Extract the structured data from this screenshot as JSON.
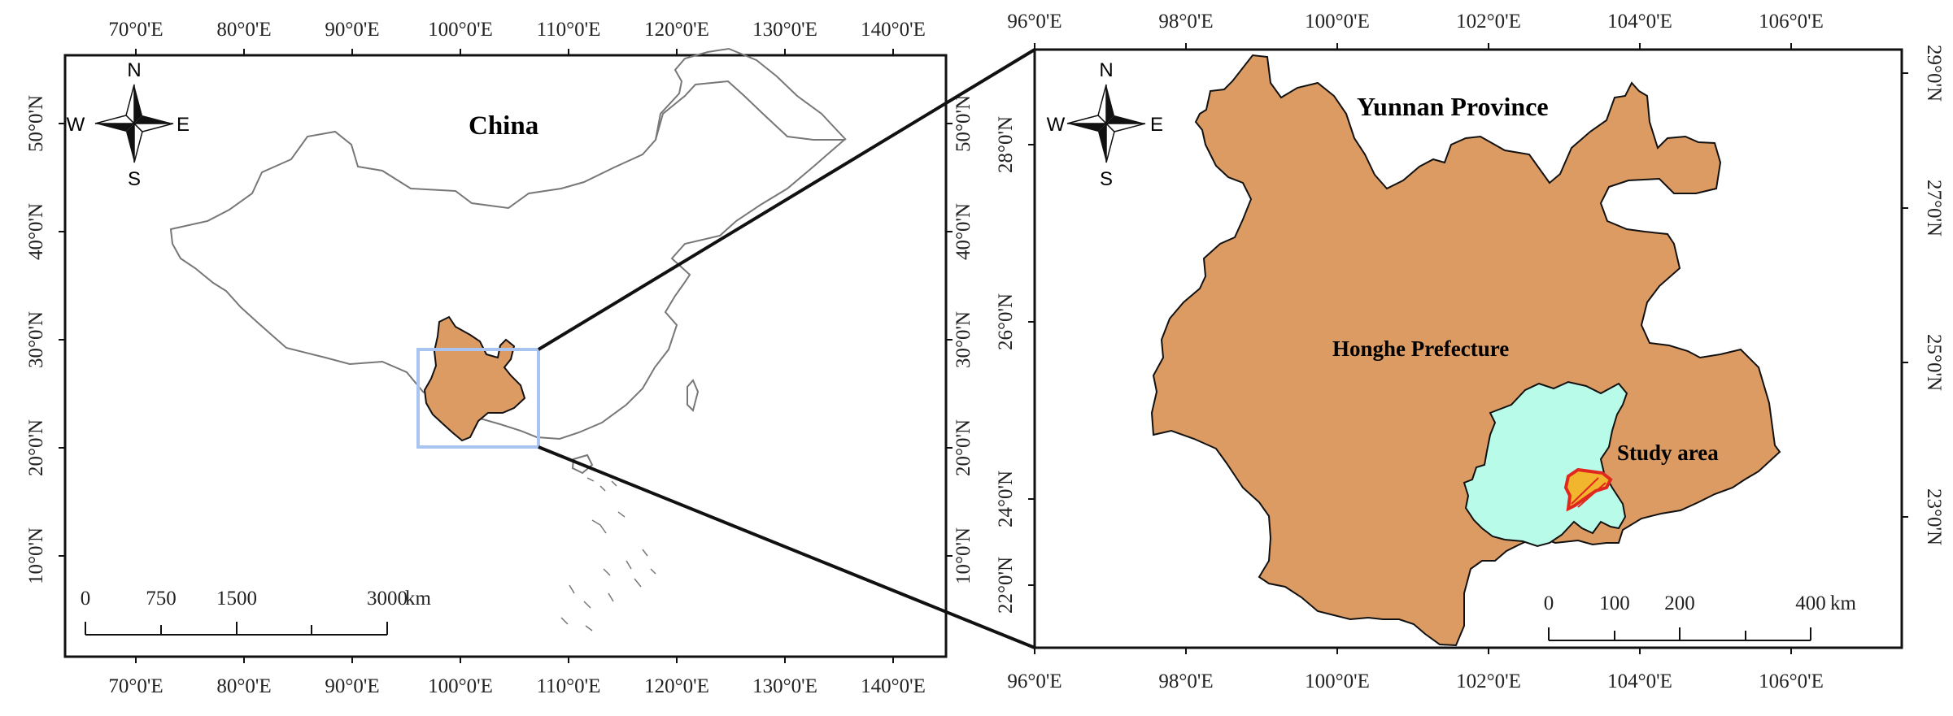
{
  "colors": {
    "yunnan_fill": "#DC9B63",
    "prefecture_fill": "#B8FBE8",
    "study_area_fill": "#F2B52E",
    "study_area_stroke": "#E0281E",
    "inset_box": "#A9C4F0",
    "outline": "#111111",
    "china_outline": "#777777"
  },
  "left_map": {
    "title": "China",
    "compass": {
      "n": "N",
      "s": "S",
      "w": "W",
      "e": "E"
    },
    "top_ticks": [
      "70°0'E",
      "80°0'E",
      "90°0'E",
      "100°0'E",
      "110°0'E",
      "120°0'E",
      "130°0'E",
      "140°0'E"
    ],
    "bottom_ticks": [
      "70°0'E",
      "80°0'E",
      "90°0'E",
      "100°0'E",
      "110°0'E",
      "120°0'E",
      "130°0'E",
      "140°0'E"
    ],
    "left_ticks": [
      "50°0'N",
      "40°0'N",
      "30°0'N",
      "20°0'N",
      "10°0'N"
    ],
    "right_ticks": [
      "50°0'N",
      "40°0'N",
      "30°0'N",
      "20°0'N",
      "10°0'N"
    ],
    "scale_bar": {
      "labels": [
        "0",
        "750",
        "1500",
        "3000"
      ],
      "unit": "km"
    }
  },
  "right_map": {
    "title": "Yunnan Province",
    "prefecture_label": "Honghe Prefecture",
    "study_area_label": "Study area",
    "compass": {
      "n": "N",
      "s": "S",
      "w": "W",
      "e": "E"
    },
    "top_ticks": [
      "96°0'E",
      "98°0'E",
      "100°0'E",
      "102°0'E",
      "104°0'E",
      "106°0'E"
    ],
    "bottom_ticks": [
      "96°0'E",
      "98°0'E",
      "100°0'E",
      "102°0'E",
      "104°0'E",
      "106°0'E"
    ],
    "left_ticks": [
      "28°0'N",
      "26°0'N",
      "24°0'N",
      "22°0'N"
    ],
    "right_ticks": [
      "29°0'N",
      "27°0'N",
      "25°0'N",
      "23°0'N"
    ],
    "scale_bar": {
      "labels": [
        "0",
        "100",
        "200",
        "400"
      ],
      "unit": "km"
    }
  }
}
